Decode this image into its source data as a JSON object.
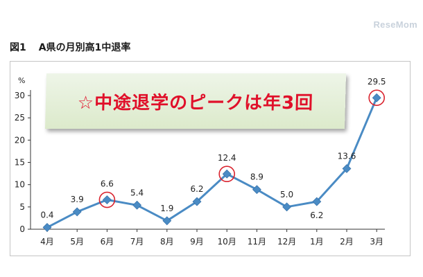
{
  "watermark": "ReseMom",
  "figure": {
    "label": "図1",
    "title": "A県の月別高1中退率"
  },
  "callout": {
    "text": "☆中途退学のピークは年3回"
  },
  "colors": {
    "line": "#4a8bc4",
    "marker": "#4a8bc4",
    "highlight": "#d9232e",
    "axis": "#333333"
  },
  "chart_data": {
    "type": "line",
    "title": "A県の月別高1中退率",
    "ylabel": "%",
    "xlabel": "",
    "categories": [
      "4月",
      "5月",
      "6月",
      "7月",
      "8月",
      "9月",
      "10月",
      "11月",
      "12月",
      "1月",
      "2月",
      "3月"
    ],
    "series": [
      {
        "values": [
          0.4,
          3.9,
          6.6,
          5.4,
          1.9,
          6.2,
          12.4,
          8.9,
          5.0,
          6.2,
          13.6,
          29.5
        ]
      }
    ],
    "data_labels": [
      "0.4",
      "3.9",
      "6.6",
      "5.4",
      "1.9",
      "6.2",
      "12.4",
      "8.9",
      "5.0",
      "6.2",
      "13.6",
      "29.5"
    ],
    "highlighted_points": [
      "6月",
      "10月",
      "3月"
    ],
    "ylim": [
      0,
      30
    ],
    "yticks": [
      0,
      5,
      10,
      15,
      20,
      25,
      30
    ],
    "grid": false,
    "legend": "none"
  }
}
